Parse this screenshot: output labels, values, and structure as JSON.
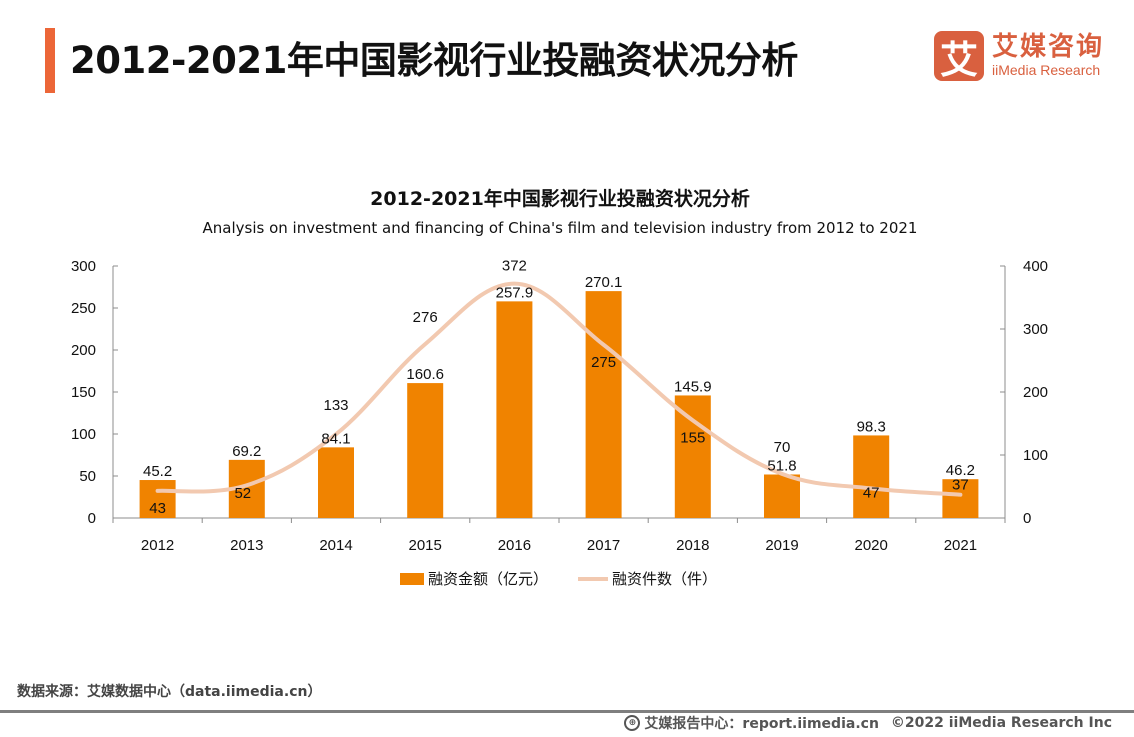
{
  "header": {
    "title": "2012-2021年中国影视行业投融资状况分析",
    "logo": {
      "mark": "艾",
      "name_cn": "艾媒咨询",
      "name_en": "iiMedia Research"
    }
  },
  "colors": {
    "accent": "#ec6638",
    "bar": "#f08300",
    "line": "#f2c9b0",
    "logo": "#d9603f"
  },
  "chart_data": {
    "type": "bar",
    "title": "2012-2021年中国影视行业投融资状况分析",
    "subtitle": "Analysis on investment and financing of China's film and television industry from 2012 to 2021",
    "categories": [
      "2012",
      "2013",
      "2014",
      "2015",
      "2016",
      "2017",
      "2018",
      "2019",
      "2020",
      "2021"
    ],
    "series": [
      {
        "name": "融资金额（亿元）",
        "type": "bar",
        "axis": "left",
        "values": [
          45.2,
          69.2,
          84.1,
          160.6,
          257.9,
          270.1,
          145.9,
          51.8,
          98.3,
          46.2
        ]
      },
      {
        "name": "融资件数（件）",
        "type": "line",
        "axis": "right",
        "values": [
          43,
          52,
          133,
          276,
          372,
          275,
          155,
          70,
          47,
          37
        ]
      }
    ],
    "y_left": {
      "ylim": [
        0,
        300
      ],
      "ticks": [
        "0",
        "50",
        "100",
        "150",
        "200",
        "250",
        "300"
      ]
    },
    "y_right": {
      "ylim": [
        0,
        400
      ],
      "ticks": [
        "0",
        "100",
        "200",
        "300",
        "400"
      ]
    },
    "xlabel": "",
    "ylabel": "",
    "grid": false,
    "legend_position": "bottom-center"
  },
  "legend": {
    "bar_label": "融资金额（亿元）",
    "line_label": "融资件数（件）"
  },
  "footer": {
    "source": "数据来源：艾媒数据中心（data.iimedia.cn）",
    "report_center": "艾媒报告中心：report.iimedia.cn",
    "copyright": "©2022  iiMedia Research  Inc",
    "globe_icon": "globe-icon"
  }
}
